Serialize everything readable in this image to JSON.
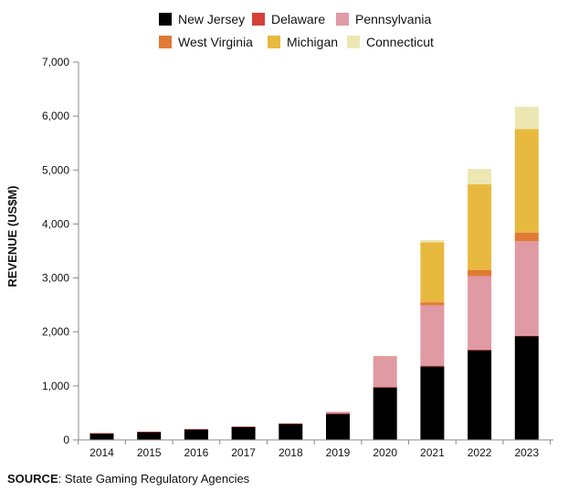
{
  "chart_data": {
    "type": "bar",
    "stacked": true,
    "ylabel": "REVENUE (US$M)",
    "ylim": [
      0,
      7000
    ],
    "yticks": [
      0,
      1000,
      2000,
      3000,
      4000,
      5000,
      6000,
      7000
    ],
    "ytick_labels": [
      "0",
      "1,000",
      "2,000",
      "3,000",
      "4,000",
      "5,000",
      "6,000",
      "7,000"
    ],
    "grid": false,
    "legend_position": "top",
    "categories": [
      "2014",
      "2015",
      "2016",
      "2017",
      "2018",
      "2019",
      "2020",
      "2021",
      "2022",
      "2023"
    ],
    "series": [
      {
        "name": "New Jersey",
        "color": "#000000",
        "values": [
          122,
          149,
          197,
          245,
          299,
          483,
          970,
          1360,
          1660,
          1920
        ]
      },
      {
        "name": "Delaware",
        "color": "#d43f36",
        "values": [
          2,
          2,
          2,
          2,
          4,
          6,
          10,
          15,
          15,
          10
        ]
      },
      {
        "name": "Pennsylvania",
        "color": "#e09aa3",
        "values": [
          0,
          0,
          0,
          0,
          0,
          33,
          560,
          1120,
          1360,
          1750
        ]
      },
      {
        "name": "West Virginia",
        "color": "#e07a36",
        "values": [
          0,
          0,
          0,
          0,
          0,
          0,
          10,
          55,
          110,
          160
        ]
      },
      {
        "name": "Michigan",
        "color": "#e8b93f",
        "values": [
          0,
          0,
          0,
          0,
          0,
          0,
          0,
          1110,
          1590,
          1920
        ]
      },
      {
        "name": "Connecticut",
        "color": "#ece7b2",
        "values": [
          0,
          0,
          0,
          0,
          0,
          0,
          0,
          45,
          285,
          410
        ]
      }
    ]
  },
  "source": {
    "label": "SOURCE",
    "text": ": State Gaming Regulatory Agencies"
  }
}
